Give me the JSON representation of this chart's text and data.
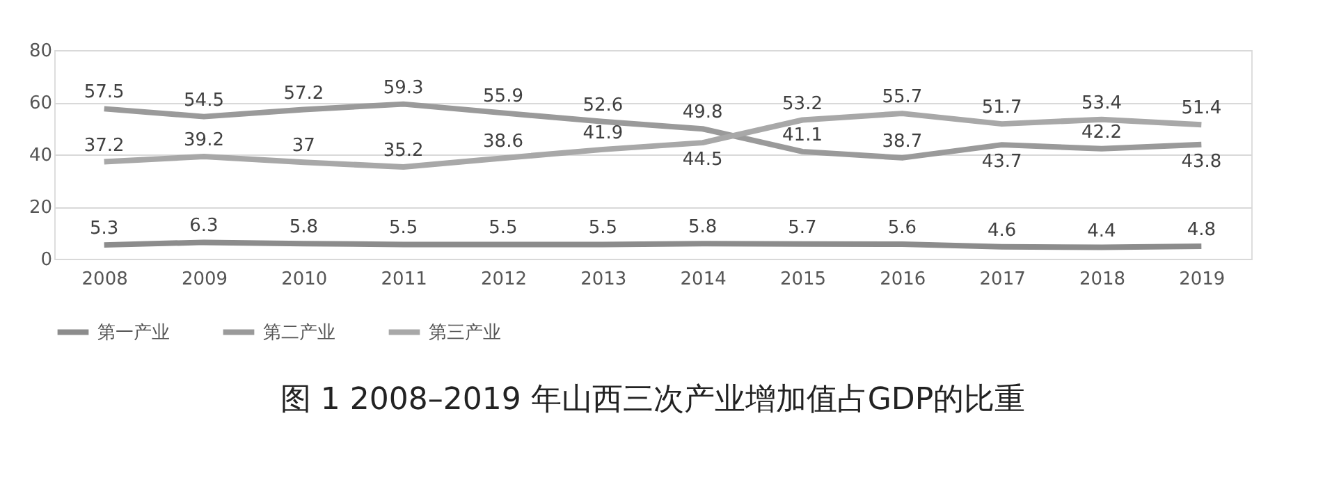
{
  "chart_data": {
    "type": "line",
    "title": "图 1 2008–2019 年山西三次产业增加值占GDP的比重",
    "categories": [
      "2008",
      "2009",
      "2010",
      "2011",
      "2012",
      "2013",
      "2014",
      "2015",
      "2016",
      "2017",
      "2018",
      "2019"
    ],
    "series": [
      {
        "name": "第一产业",
        "color": "#8c8c8c",
        "values": [
          5.3,
          6.3,
          5.8,
          5.5,
          5.5,
          5.5,
          5.8,
          5.7,
          5.6,
          4.6,
          4.4,
          4.8
        ]
      },
      {
        "name": "第二产业",
        "color": "#9a9a9a",
        "values": [
          57.5,
          54.5,
          57.2,
          59.3,
          55.9,
          52.6,
          49.8,
          41.1,
          38.7,
          43.7,
          42.2,
          43.8
        ]
      },
      {
        "name": "第三产业",
        "color": "#a8a8a8",
        "values": [
          37.2,
          39.2,
          37,
          35.2,
          38.6,
          41.9,
          44.5,
          53.2,
          55.7,
          51.7,
          53.4,
          51.4
        ]
      }
    ],
    "ylim": [
      0,
      80
    ],
    "yticks": [
      0,
      20,
      40,
      60,
      80
    ],
    "grid": "y",
    "legend": "bottom",
    "data_labels": true,
    "marker": "none",
    "line_style": "solid"
  }
}
